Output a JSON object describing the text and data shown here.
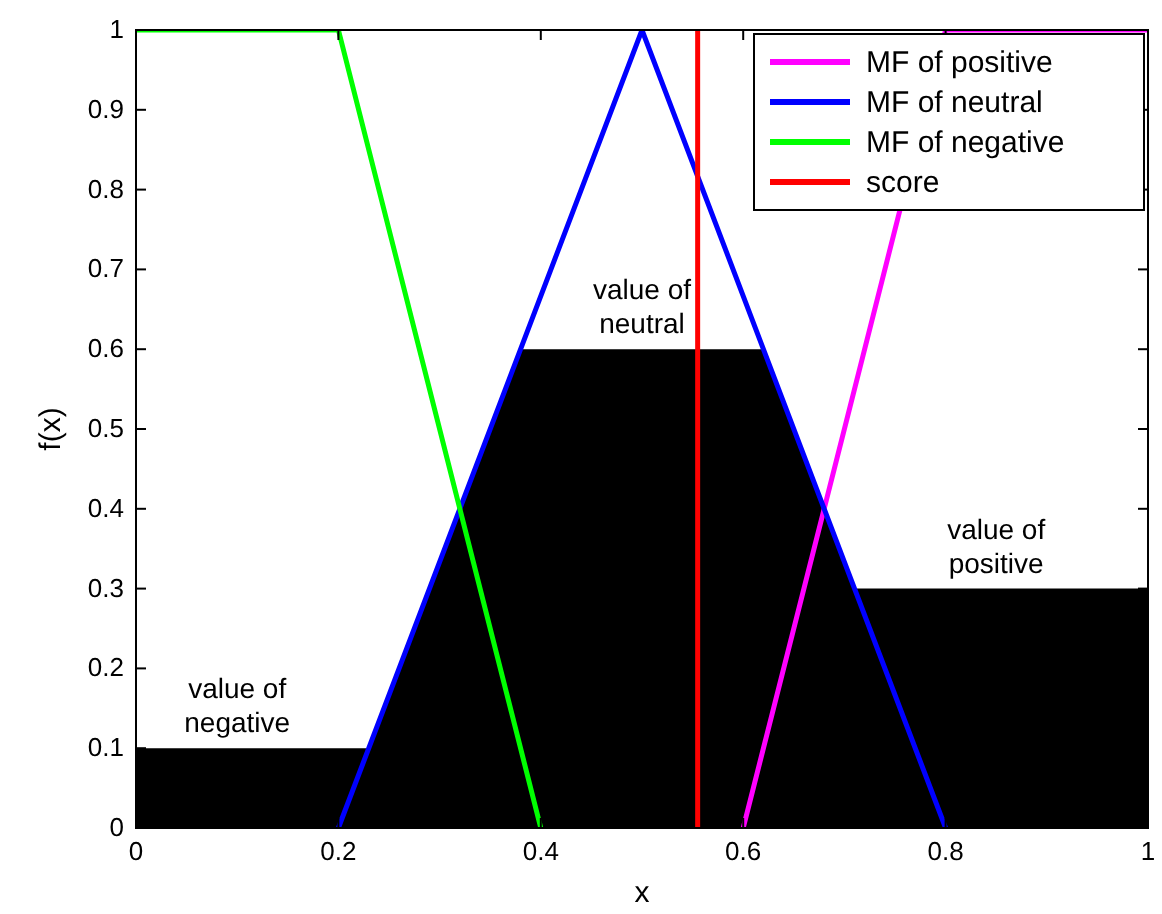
{
  "chart_data": {
    "type": "line",
    "xlabel": "x",
    "ylabel": "f(x)",
    "xlim": [
      0,
      1
    ],
    "ylim": [
      0,
      1
    ],
    "xticks": [
      0,
      0.2,
      0.4,
      0.6,
      0.8,
      1
    ],
    "yticks": [
      0,
      0.1,
      0.2,
      0.3,
      0.4,
      0.5,
      0.6,
      0.7,
      0.8,
      0.9,
      1
    ],
    "grid": false,
    "legend": "top right",
    "line_style": "solid",
    "marker": "none",
    "series": [
      {
        "type": "area",
        "color": "#000000",
        "x": [
          0,
          0.23,
          0.38,
          0.62,
          0.71,
          1
        ],
        "values": [
          0.1,
          0.1,
          0.6,
          0.6,
          0.3,
          0.3
        ]
      },
      {
        "name": "MF of positive",
        "color": "#ff00ff",
        "x": [
          0.6,
          0.8,
          1
        ],
        "values": [
          0,
          1,
          1
        ]
      },
      {
        "name": "MF of neutral",
        "color": "#0000ff",
        "x": [
          0.2,
          0.5,
          0.8
        ],
        "values": [
          0,
          1,
          0
        ]
      },
      {
        "name": "MF of negative",
        "color": "#00ff00",
        "x": [
          0,
          0.2,
          0.4
        ],
        "values": [
          1,
          1,
          0
        ]
      },
      {
        "name": "score",
        "color": "#ff0000",
        "x": [
          0.555,
          0.555
        ],
        "values": [
          0,
          1
        ]
      }
    ],
    "annotations": [
      {
        "text": "value of\nnegative",
        "x": 0.1,
        "y": 0.1
      },
      {
        "text": "value of\nneutral",
        "x": 0.5,
        "y": 0.6
      },
      {
        "text": "value of\npositive",
        "x": 0.85,
        "y": 0.3
      }
    ]
  }
}
